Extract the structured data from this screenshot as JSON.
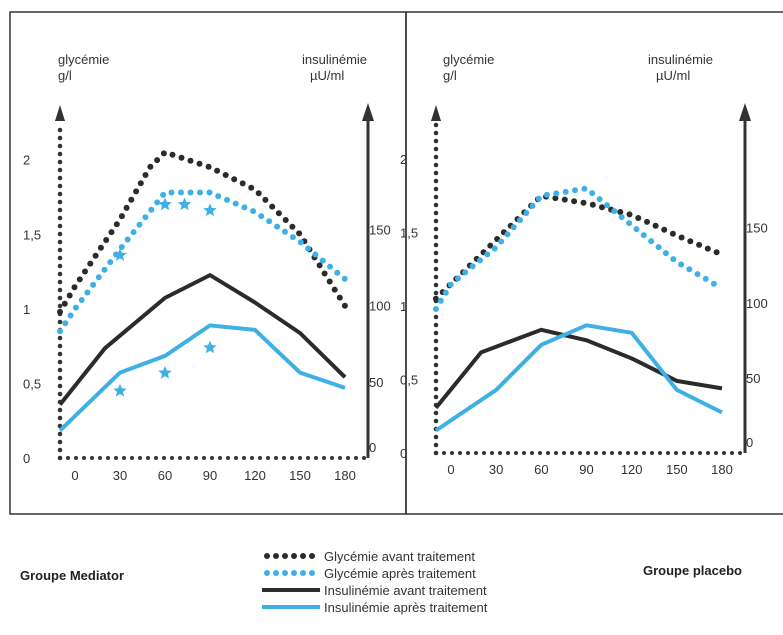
{
  "chart_data": [
    {
      "type": "line",
      "title": "Groupe Mediator",
      "xlabel": "",
      "x_ticks": [
        0,
        30,
        60,
        90,
        120,
        150,
        180
      ],
      "left_axis": {
        "label_line1": "glycémie",
        "label_line2": "g/l",
        "ticks": [
          "0",
          "0,5",
          "1",
          "1,5",
          "2"
        ],
        "range": [
          0,
          2.3
        ]
      },
      "right_axis": {
        "label_line1": "insulinémie",
        "label_line2": "µU/ml",
        "ticks": [
          "0",
          "50",
          "100",
          "150"
        ],
        "range": [
          0,
          225
        ]
      },
      "series": [
        {
          "name": "Glycémie avant traitement",
          "axis": "left",
          "style": "dots-dark",
          "x": [
            -10,
            0,
            30,
            50,
            60,
            90,
            120,
            150,
            180
          ],
          "y": [
            0.98,
            1.15,
            1.6,
            1.95,
            2.05,
            1.95,
            1.8,
            1.5,
            1.02
          ]
        },
        {
          "name": "Glycémie après traitement",
          "axis": "left",
          "style": "dots-blue",
          "x": [
            -10,
            0,
            30,
            60,
            90,
            120,
            150,
            180
          ],
          "y": [
            0.85,
            1.0,
            1.4,
            1.78,
            1.78,
            1.65,
            1.45,
            1.2
          ]
        },
        {
          "name": "Insulinémie avant traitement",
          "axis": "right",
          "style": "line-dark",
          "x": [
            -10,
            20,
            60,
            90,
            120,
            150,
            180
          ],
          "y": [
            35,
            72,
            105,
            120,
            102,
            82,
            53
          ]
        },
        {
          "name": "Insulinémie après traitement",
          "axis": "right",
          "style": "line-blue",
          "x": [
            -10,
            30,
            60,
            90,
            120,
            150,
            180
          ],
          "y": [
            18,
            56,
            67,
            87,
            84,
            56,
            46
          ]
        }
      ],
      "stars": [
        {
          "x": 30,
          "y": 1.36
        },
        {
          "x": 30,
          "y": 0.45
        },
        {
          "x": 60,
          "y": 1.7
        },
        {
          "x": 73,
          "y": 1.7
        },
        {
          "x": 60,
          "y": 0.57
        },
        {
          "x": 90,
          "y": 1.66
        },
        {
          "x": 90,
          "y": 0.74
        }
      ]
    },
    {
      "type": "line",
      "title": "Groupe placebo",
      "xlabel": "",
      "x_ticks": [
        0,
        30,
        60,
        90,
        120,
        150,
        180
      ],
      "left_axis": {
        "label_line1": "glycémie",
        "label_line2": "g/l",
        "ticks": [
          "0",
          "0,5",
          "1",
          "1,5",
          "2"
        ],
        "range": [
          0,
          2.3
        ]
      },
      "right_axis": {
        "label_line1": "insulinémie",
        "label_line2": "µU/ml",
        "ticks": [
          "0",
          "50",
          "100",
          "150"
        ],
        "range": [
          0,
          225
        ]
      },
      "series": [
        {
          "name": "Glycémie avant traitement",
          "axis": "left",
          "style": "dots-dark",
          "x": [
            -10,
            0,
            30,
            60,
            90,
            120,
            150,
            180
          ],
          "y": [
            1.05,
            1.15,
            1.45,
            1.75,
            1.7,
            1.62,
            1.48,
            1.35
          ]
        },
        {
          "name": "Glycémie après traitement",
          "axis": "left",
          "style": "dots-blue",
          "x": [
            -10,
            0,
            30,
            60,
            90,
            120,
            150,
            180
          ],
          "y": [
            0.98,
            1.15,
            1.4,
            1.75,
            1.8,
            1.55,
            1.3,
            1.12
          ]
        },
        {
          "name": "Insulinémie avant traitement",
          "axis": "right",
          "style": "line-dark",
          "x": [
            -10,
            20,
            60,
            90,
            120,
            150,
            180
          ],
          "y": [
            30,
            67,
            82,
            75,
            63,
            48,
            43
          ]
        },
        {
          "name": "Insulinémie après traitement",
          "axis": "right",
          "style": "line-blue",
          "x": [
            -10,
            30,
            60,
            90,
            120,
            150,
            180
          ],
          "y": [
            15,
            42,
            72,
            85,
            80,
            42,
            27
          ]
        }
      ]
    }
  ],
  "legend": {
    "items": [
      {
        "label": "Glycémie avant traitement",
        "style": "dots-dark"
      },
      {
        "label": "Glycémie après traitement",
        "style": "dots-blue"
      },
      {
        "label": "Insulinémie avant traitement",
        "style": "line-dark"
      },
      {
        "label": "Insulinémie après traitement",
        "style": "line-blue"
      }
    ]
  },
  "colors": {
    "dark": "#2b2b2b",
    "blue": "#3fb0e6",
    "axis": "#333333"
  }
}
